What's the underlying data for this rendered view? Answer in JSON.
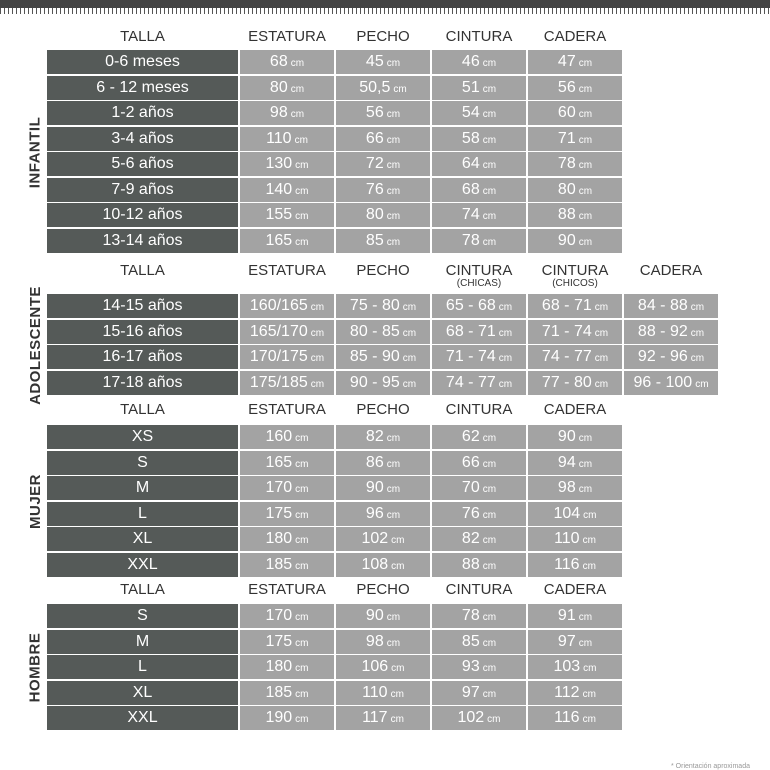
{
  "unit": "cm",
  "note": "* Orientación aproximada",
  "sections": [
    {
      "name": "INFANTIL",
      "headers": [
        {
          "t": "TALLA"
        },
        {
          "t": "ESTATURA"
        },
        {
          "t": "PECHO"
        },
        {
          "t": "CINTURA"
        },
        {
          "t": "CADERA"
        }
      ],
      "rows": [
        [
          "0-6 meses",
          "68",
          "45",
          "46",
          "47"
        ],
        [
          "6 - 12 meses",
          "80",
          "50,5",
          "51",
          "56"
        ],
        [
          "1-2 años",
          "98",
          "56",
          "54",
          "60"
        ],
        [
          "3-4 años",
          "110",
          "66",
          "58",
          "71"
        ],
        [
          "5-6 años",
          "130",
          "72",
          "64",
          "78"
        ],
        [
          "7-9 años",
          "140",
          "76",
          "68",
          "80"
        ],
        [
          "10-12 años",
          "155",
          "80",
          "74",
          "88"
        ],
        [
          "13-14 años",
          "165",
          "85",
          "78",
          "90"
        ]
      ]
    },
    {
      "name": "ADOLESCENTE",
      "headers": [
        {
          "t": "TALLA"
        },
        {
          "t": "ESTATURA"
        },
        {
          "t": "PECHO"
        },
        {
          "t": "CINTURA",
          "s": "(CHICAS)"
        },
        {
          "t": "CINTURA",
          "s": "(CHICOS)"
        },
        {
          "t": "CADERA"
        }
      ],
      "rows": [
        [
          "14-15 años",
          "160/165",
          "75 - 80",
          "65 - 68",
          "68 - 71",
          "84 - 88"
        ],
        [
          "15-16 años",
          "165/170",
          "80 - 85",
          "68 - 71",
          "71 - 74",
          "88 - 92"
        ],
        [
          "16-17 años",
          "170/175",
          "85 - 90",
          "71 - 74",
          "74 - 77",
          "92 - 96"
        ],
        [
          "17-18 años",
          "175/185",
          "90 - 95",
          "74 - 77",
          "77 - 80",
          "96 - 100"
        ]
      ]
    },
    {
      "name": "MUJER",
      "headers": [
        {
          "t": "TALLA"
        },
        {
          "t": "ESTATURA"
        },
        {
          "t": "PECHO"
        },
        {
          "t": "CINTURA"
        },
        {
          "t": "CADERA"
        }
      ],
      "rows": [
        [
          "XS",
          "160",
          "82",
          "62",
          "90"
        ],
        [
          "S",
          "165",
          "86",
          "66",
          "94"
        ],
        [
          "M",
          "170",
          "90",
          "70",
          "98"
        ],
        [
          "L",
          "175",
          "96",
          "76",
          "104"
        ],
        [
          "XL",
          "180",
          "102",
          "82",
          "110"
        ],
        [
          "XXL",
          "185",
          "108",
          "88",
          "116"
        ]
      ]
    },
    {
      "name": "HOMBRE",
      "headers": [
        {
          "t": "TALLA"
        },
        {
          "t": "ESTATURA"
        },
        {
          "t": "PECHO"
        },
        {
          "t": "CINTURA"
        },
        {
          "t": "CADERA"
        }
      ],
      "rows": [
        [
          "S",
          "170",
          "90",
          "78",
          "91"
        ],
        [
          "M",
          "175",
          "98",
          "85",
          "97"
        ],
        [
          "L",
          "180",
          "106",
          "93",
          "103"
        ],
        [
          "XL",
          "185",
          "110",
          "97",
          "112"
        ],
        [
          "XXL",
          "190",
          "117",
          "102",
          "116"
        ]
      ]
    }
  ]
}
